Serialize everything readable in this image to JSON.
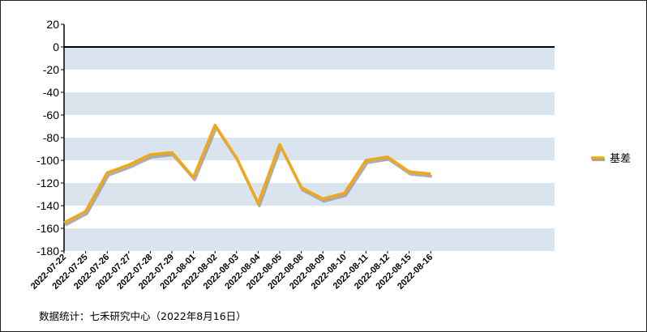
{
  "chart_data": {
    "type": "line",
    "x": [
      "2022-07-22",
      "2022-07-25",
      "2022-07-26",
      "2022-07-27",
      "2022-07-28",
      "2022-07-29",
      "2022-08-01",
      "2022-08-02",
      "2022-08-03",
      "2022-08-04",
      "2022-08-05",
      "2022-08-08",
      "2022-08-09",
      "2022-08-10",
      "2022-08-11",
      "2022-08-12",
      "2022-08-15",
      "2022-08-16"
    ],
    "series": [
      {
        "name": "基差",
        "values": [
          -155,
          -145,
          -111,
          -104,
          -95,
          -93,
          -115,
          -69,
          -98,
          -138,
          -86,
          -124,
          -134,
          -129,
          -100,
          -97,
          -110,
          -112
        ]
      }
    ],
    "ylim": [
      -180,
      20
    ],
    "yticks": [
      20,
      0,
      -20,
      -40,
      -60,
      -80,
      -100,
      -120,
      -140,
      -160,
      -180
    ],
    "grid": "alternating-bands",
    "legend": "right",
    "colors": {
      "line": "#f0a818",
      "shadow": "#9a9a9a",
      "band": "#d9e4ef"
    }
  },
  "source_note": "数据统计：七禾研究中心（2022年8月16日）"
}
